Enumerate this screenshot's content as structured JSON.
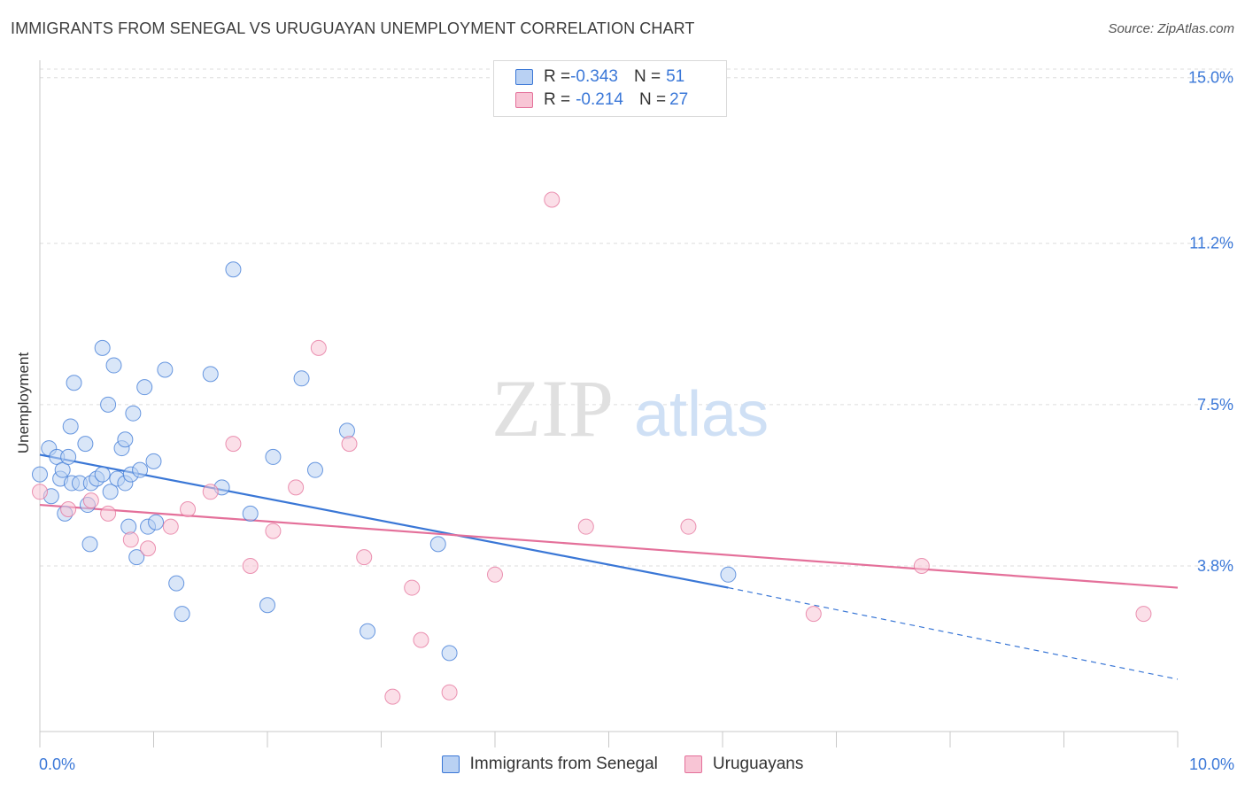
{
  "title": "IMMIGRANTS FROM SENEGAL VS URUGUAYAN UNEMPLOYMENT CORRELATION CHART",
  "source": "Source: ZipAtlas.com",
  "watermark": {
    "zip": "ZIP",
    "atlas": "atlas"
  },
  "colors": {
    "blue": "#3a77d6",
    "blue_fill": "#b9d1f3",
    "pink": "#e4709a",
    "pink_fill": "#f8c5d5",
    "axis_text": "#3b78d8",
    "grid": "#dddddd"
  },
  "legend": {
    "rows": [
      {
        "r_label": "R = ",
        "r_value": "-0.343",
        "n_label": "N = ",
        "n_value": "51"
      },
      {
        "r_label": "R = ",
        "r_value": "-0.214",
        "n_label": "N = ",
        "n_value": "27"
      }
    ]
  },
  "chart_data": {
    "type": "scatter",
    "title": "IMMIGRANTS FROM SENEGAL VS URUGUAYAN UNEMPLOYMENT CORRELATION CHART",
    "xlabel": "",
    "ylabel": "Unemployment",
    "xlim": [
      0,
      10
    ],
    "ylim": [
      0,
      15.4
    ],
    "x_ticks": [
      0,
      10
    ],
    "x_tick_labels": [
      "0.0%",
      "10.0%"
    ],
    "y_ticks": [
      3.8,
      7.5,
      11.2,
      15.0
    ],
    "y_tick_labels": [
      "3.8%",
      "7.5%",
      "11.2%",
      "15.0%"
    ],
    "grid": "horizontal dashed",
    "legend_position": "top-center",
    "series": [
      {
        "name": "Immigrants from Senegal",
        "color": "#3a77d6",
        "points": [
          [
            0.0,
            5.9
          ],
          [
            0.08,
            6.5
          ],
          [
            0.1,
            5.4
          ],
          [
            0.15,
            6.3
          ],
          [
            0.18,
            5.8
          ],
          [
            0.2,
            6.0
          ],
          [
            0.22,
            5.0
          ],
          [
            0.25,
            6.3
          ],
          [
            0.27,
            7.0
          ],
          [
            0.28,
            5.7
          ],
          [
            0.3,
            8.0
          ],
          [
            0.35,
            5.7
          ],
          [
            0.4,
            6.6
          ],
          [
            0.42,
            5.2
          ],
          [
            0.44,
            4.3
          ],
          [
            0.45,
            5.7
          ],
          [
            0.5,
            5.8
          ],
          [
            0.55,
            5.9
          ],
          [
            0.55,
            8.8
          ],
          [
            0.6,
            7.5
          ],
          [
            0.62,
            5.5
          ],
          [
            0.65,
            8.4
          ],
          [
            0.68,
            5.8
          ],
          [
            0.72,
            6.5
          ],
          [
            0.75,
            5.7
          ],
          [
            0.75,
            6.7
          ],
          [
            0.78,
            4.7
          ],
          [
            0.8,
            5.9
          ],
          [
            0.82,
            7.3
          ],
          [
            0.85,
            4.0
          ],
          [
            0.88,
            6.0
          ],
          [
            0.92,
            7.9
          ],
          [
            0.95,
            4.7
          ],
          [
            1.0,
            6.2
          ],
          [
            1.02,
            4.8
          ],
          [
            1.1,
            8.3
          ],
          [
            1.2,
            3.4
          ],
          [
            1.25,
            2.7
          ],
          [
            1.5,
            8.2
          ],
          [
            1.6,
            5.6
          ],
          [
            1.7,
            10.6
          ],
          [
            1.85,
            5.0
          ],
          [
            2.0,
            2.9
          ],
          [
            2.05,
            6.3
          ],
          [
            2.3,
            8.1
          ],
          [
            2.42,
            6.0
          ],
          [
            2.7,
            6.9
          ],
          [
            2.88,
            2.3
          ],
          [
            3.5,
            4.3
          ],
          [
            3.6,
            1.8
          ],
          [
            6.05,
            3.6
          ]
        ]
      },
      {
        "name": "Uruguayans",
        "color": "#e4709a",
        "points": [
          [
            0.0,
            5.5
          ],
          [
            0.25,
            5.1
          ],
          [
            0.45,
            5.3
          ],
          [
            0.6,
            5.0
          ],
          [
            0.8,
            4.4
          ],
          [
            0.95,
            4.2
          ],
          [
            1.15,
            4.7
          ],
          [
            1.3,
            5.1
          ],
          [
            1.5,
            5.5
          ],
          [
            1.7,
            6.6
          ],
          [
            1.85,
            3.8
          ],
          [
            2.05,
            4.6
          ],
          [
            2.25,
            5.6
          ],
          [
            2.45,
            8.8
          ],
          [
            2.72,
            6.6
          ],
          [
            2.85,
            4.0
          ],
          [
            3.1,
            0.8
          ],
          [
            3.27,
            3.3
          ],
          [
            3.35,
            2.1
          ],
          [
            3.6,
            0.9
          ],
          [
            4.0,
            3.6
          ],
          [
            4.5,
            12.2
          ],
          [
            4.8,
            4.7
          ],
          [
            5.7,
            4.7
          ],
          [
            6.8,
            2.7
          ],
          [
            7.75,
            3.8
          ],
          [
            9.7,
            2.7
          ]
        ]
      }
    ],
    "trendlines": [
      {
        "series": "Immigrants from Senegal",
        "x": [
          0,
          6.05
        ],
        "y": [
          6.35,
          3.3
        ],
        "extension": {
          "x": [
            6.05,
            10
          ],
          "y": [
            3.3,
            1.2
          ],
          "style": "dashed"
        }
      },
      {
        "series": "Uruguayans",
        "x": [
          0,
          10
        ],
        "y": [
          5.2,
          3.3
        ]
      }
    ]
  }
}
